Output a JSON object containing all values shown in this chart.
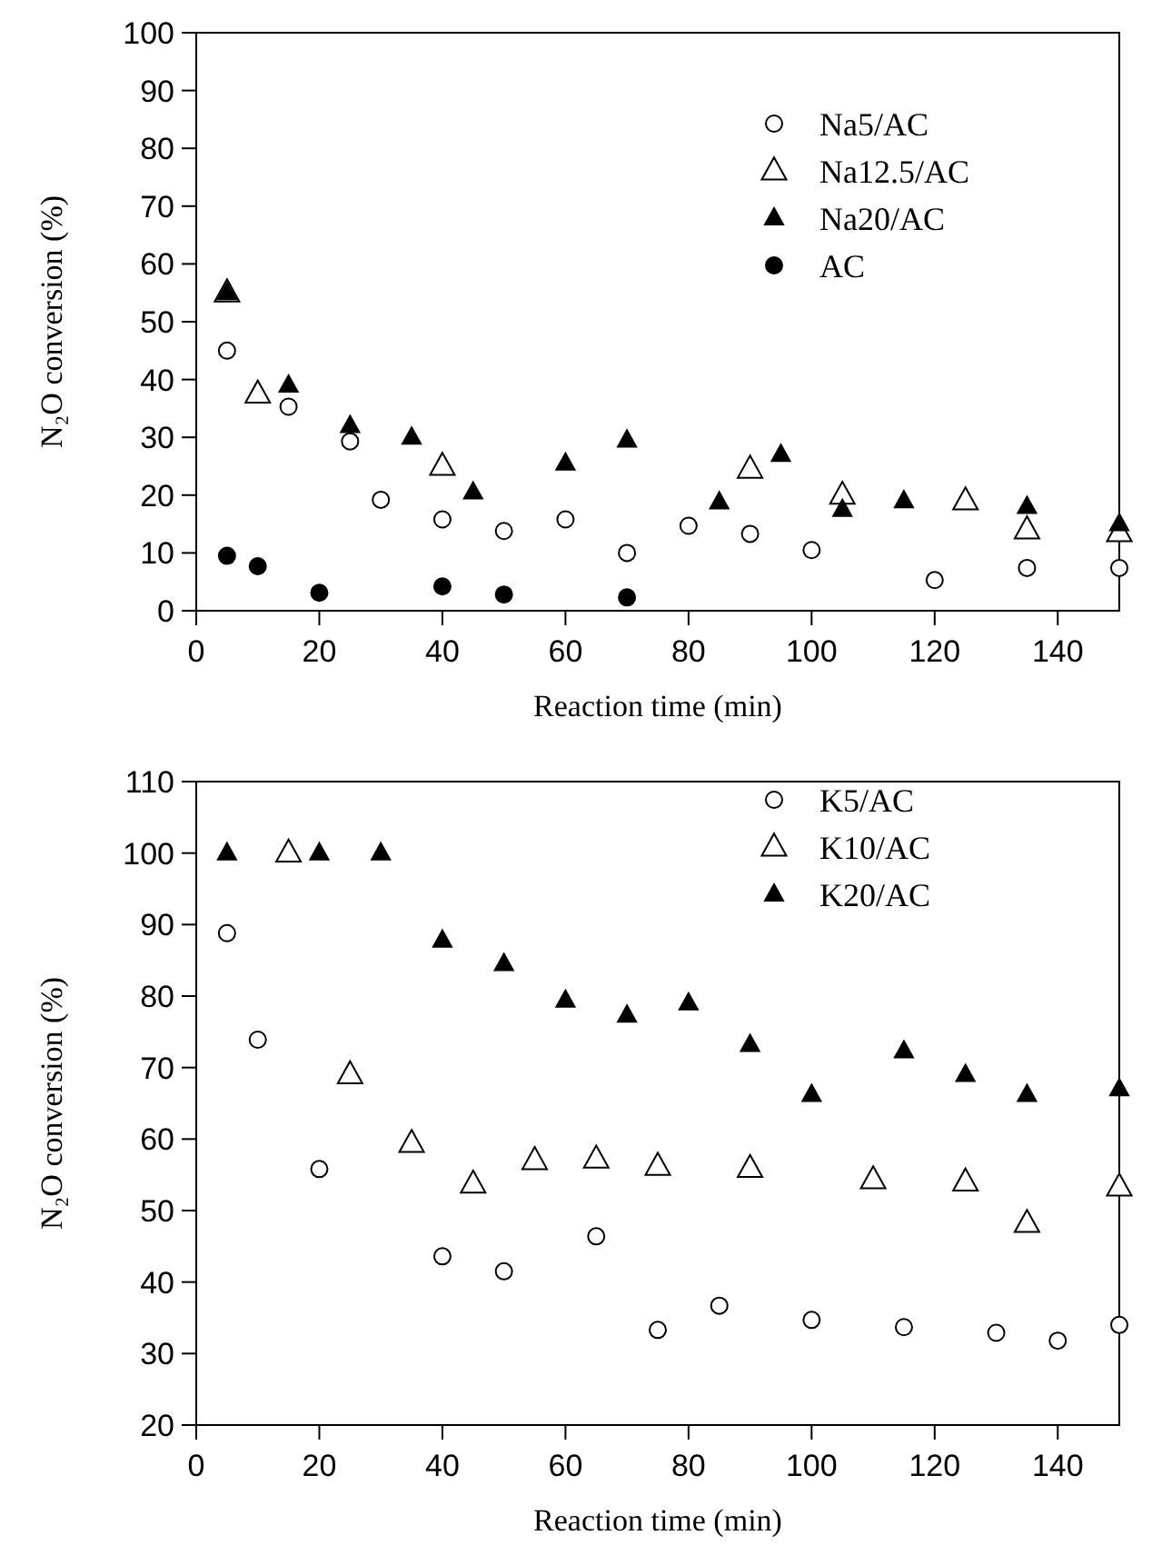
{
  "chart_data": [
    {
      "type": "scatter",
      "xlabel": "Reaction time (min)",
      "ylabel": "N₂O conversion (%)",
      "xlim": [
        0,
        150
      ],
      "xticks": [
        0,
        20,
        40,
        60,
        80,
        100,
        120,
        140
      ],
      "ylim": [
        0,
        100
      ],
      "yticks": [
        0,
        10,
        20,
        30,
        40,
        50,
        60,
        70,
        80,
        90,
        100
      ],
      "legend": "top right",
      "grid": false,
      "series": [
        {
          "name": "Na5/AC",
          "color": "#ffffff",
          "marker": "circle",
          "x": [
            5,
            15,
            25,
            30,
            40,
            50,
            60,
            70,
            80,
            90,
            100,
            120,
            135,
            150
          ],
          "values": [
            45,
            35.3,
            29.3,
            19.2,
            15.8,
            13.8,
            15.8,
            10,
            14.7,
            13.3,
            10.5,
            5.3,
            7.4,
            7.4
          ]
        },
        {
          "name": "Na12.5/AC",
          "color": "#ffffff",
          "marker": "triangle",
          "x": [
            5,
            10,
            40,
            90,
            105,
            125,
            135,
            150
          ],
          "values": [
            55,
            37.5,
            25,
            24.5,
            20,
            19,
            14,
            13.5
          ]
        },
        {
          "name": "Na20/AC",
          "color": "#000000",
          "marker": "triangle",
          "x": [
            5,
            15,
            25,
            35,
            45,
            60,
            70,
            85,
            95,
            105,
            115,
            135,
            150
          ],
          "values": [
            55,
            39,
            32,
            30,
            20.5,
            25.5,
            29.5,
            18.8,
            27,
            17.5,
            19,
            18,
            15
          ]
        },
        {
          "name": "AC",
          "color": "#000000",
          "marker": "circle",
          "x": [
            5,
            10,
            20,
            40,
            50,
            70
          ],
          "values": [
            9.5,
            7.7,
            3.1,
            4.2,
            2.8,
            2.3
          ]
        }
      ]
    },
    {
      "type": "scatter",
      "xlabel": "Reaction time (min)",
      "ylabel": "N₂O conversion (%)",
      "xlim": [
        0,
        150
      ],
      "xticks": [
        0,
        20,
        40,
        60,
        80,
        100,
        120,
        140
      ],
      "ylim": [
        20,
        110
      ],
      "yticks": [
        20,
        30,
        40,
        50,
        60,
        70,
        80,
        90,
        100,
        110
      ],
      "legend": "top right",
      "grid": false,
      "series": [
        {
          "name": "K5/AC",
          "color": "#ffffff",
          "marker": "circle",
          "x": [
            5,
            10,
            20,
            40,
            50,
            65,
            75,
            85,
            100,
            115,
            130,
            140,
            150
          ],
          "values": [
            88.8,
            73.9,
            55.8,
            43.6,
            41.5,
            46.4,
            33.3,
            36.7,
            34.7,
            33.7,
            32.9,
            31.8,
            34
          ]
        },
        {
          "name": "K10/AC",
          "color": "#ffffff",
          "marker": "triangle",
          "x": [
            15,
            25,
            35,
            45,
            55,
            65,
            75,
            90,
            110,
            125,
            135,
            150
          ],
          "values": [
            100,
            69,
            59.4,
            53.7,
            57,
            57.2,
            56.2,
            55.9,
            54.3,
            54,
            48.2,
            53.3
          ]
        },
        {
          "name": "K20/AC",
          "color": "#000000",
          "marker": "triangle",
          "x": [
            5,
            20,
            30,
            40,
            50,
            60,
            70,
            80,
            90,
            100,
            115,
            125,
            135,
            150
          ],
          "values": [
            100,
            100,
            100,
            87.8,
            84.5,
            79.4,
            77.3,
            79,
            73.2,
            66.2,
            72.3,
            69,
            66.2,
            67
          ]
        }
      ]
    }
  ]
}
